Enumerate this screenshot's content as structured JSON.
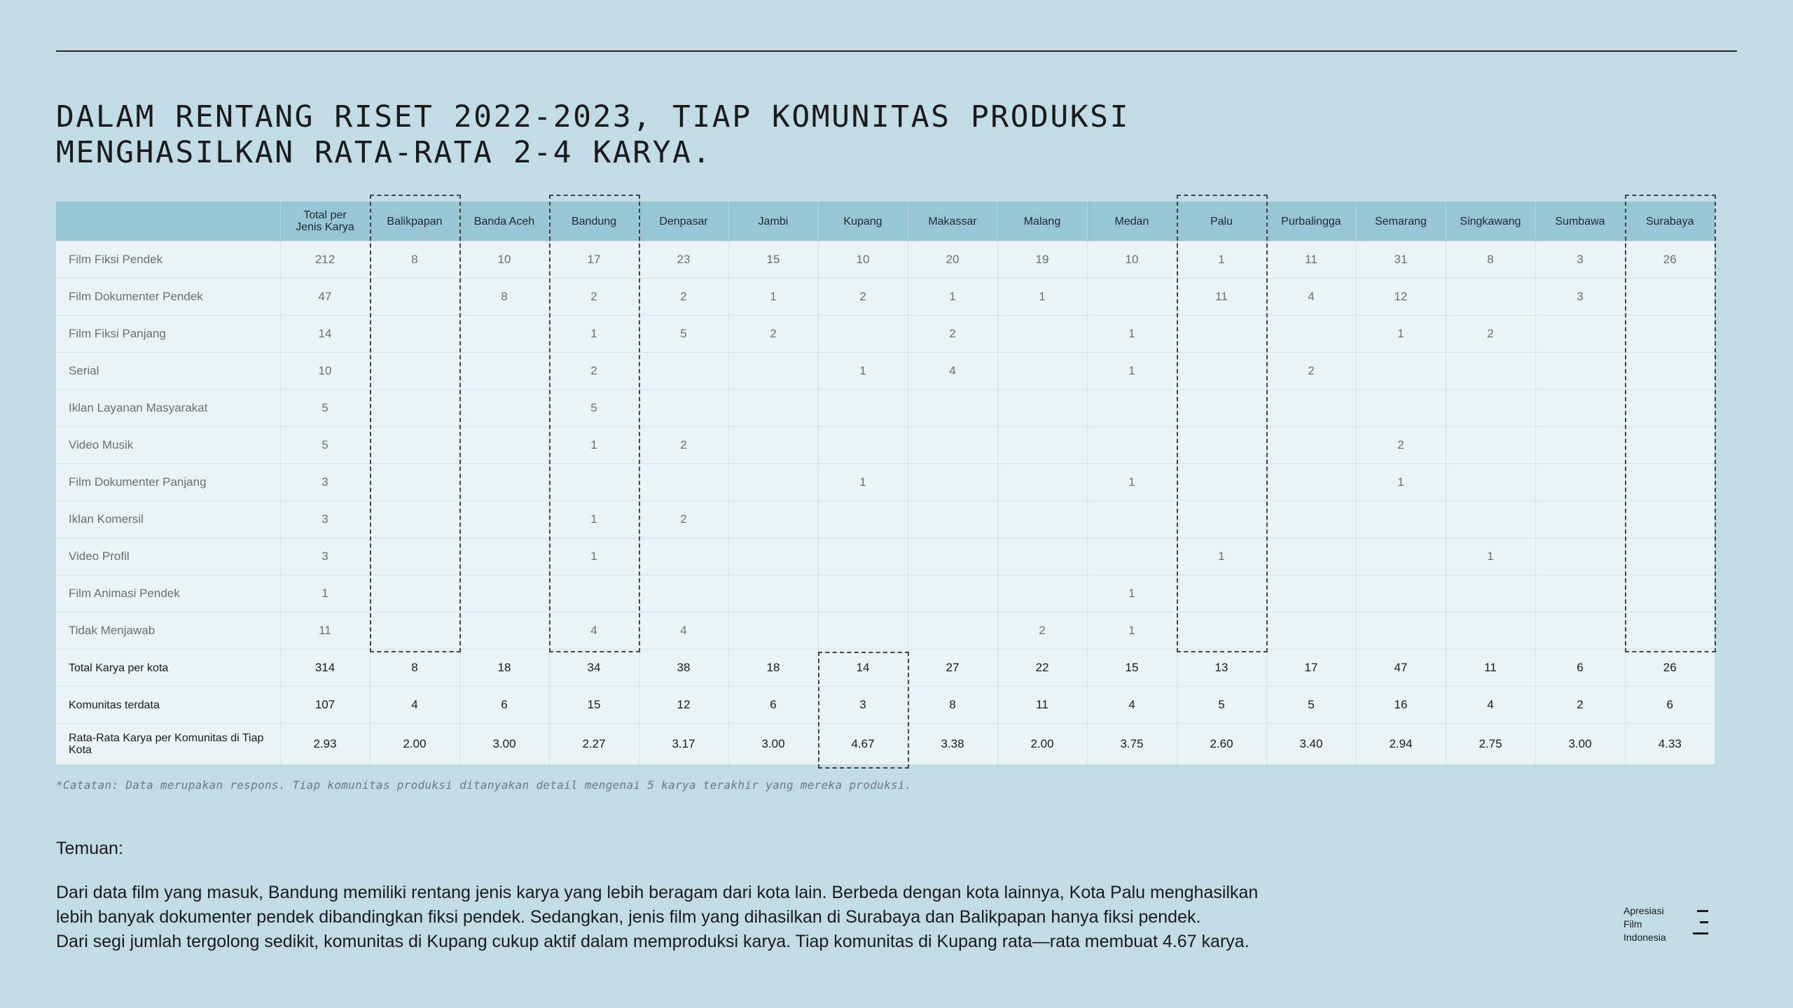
{
  "title_lines": [
    "DALAM RENTANG RISET 2022-2023, TIAP KOMUNITAS PRODUKSI",
    "MENGHASILKAN RATA-RATA 2-4 KARYA."
  ],
  "table": {
    "header_corner": "",
    "header_total_line1": "Total per",
    "header_total_line2": "Jenis Karya",
    "cities": [
      "Balikpapan",
      "Banda Aceh",
      "Bandung",
      "Denpasar",
      "Jambi",
      "Kupang",
      "Makassar",
      "Malang",
      "Medan",
      "Palu",
      "Purbalingga",
      "Semarang",
      "Singkawang",
      "Sumbawa",
      "Surabaya"
    ],
    "rows": [
      {
        "label": "Film Fiksi Pendek",
        "total": "212",
        "values": [
          "8",
          "10",
          "17",
          "23",
          "15",
          "10",
          "20",
          "19",
          "10",
          "1",
          "11",
          "31",
          "8",
          "3",
          "26"
        ]
      },
      {
        "label": "Film Dokumenter Pendek",
        "total": "47",
        "values": [
          "",
          "8",
          "2",
          "2",
          "1",
          "2",
          "1",
          "1",
          "",
          "11",
          "4",
          "12",
          "",
          "3",
          ""
        ]
      },
      {
        "label": "Film Fiksi Panjang",
        "total": "14",
        "values": [
          "",
          "",
          "1",
          "5",
          "2",
          "",
          "2",
          "",
          "1",
          "",
          "",
          "1",
          "2",
          "",
          ""
        ]
      },
      {
        "label": "Serial",
        "total": "10",
        "values": [
          "",
          "",
          "2",
          "",
          "",
          "1",
          "4",
          "",
          "1",
          "",
          "2",
          "",
          "",
          "",
          ""
        ]
      },
      {
        "label": "Iklan Layanan Masyarakat",
        "total": "5",
        "values": [
          "",
          "",
          "5",
          "",
          "",
          "",
          "",
          "",
          "",
          "",
          "",
          "",
          "",
          "",
          ""
        ]
      },
      {
        "label": "Video Musik",
        "total": "5",
        "values": [
          "",
          "",
          "1",
          "2",
          "",
          "",
          "",
          "",
          "",
          "",
          "",
          "2",
          "",
          "",
          ""
        ]
      },
      {
        "label": "Film Dokumenter Panjang",
        "total": "3",
        "values": [
          "",
          "",
          "",
          "",
          "",
          "1",
          "",
          "",
          "1",
          "",
          "",
          "1",
          "",
          "",
          ""
        ]
      },
      {
        "label": "Iklan Komersil",
        "total": "3",
        "values": [
          "",
          "",
          "1",
          "2",
          "",
          "",
          "",
          "",
          "",
          "",
          "",
          "",
          "",
          "",
          ""
        ]
      },
      {
        "label": "Video Profil",
        "total": "3",
        "values": [
          "",
          "",
          "1",
          "",
          "",
          "",
          "",
          "",
          "",
          "1",
          "",
          "",
          "1",
          "",
          ""
        ]
      },
      {
        "label": "Film Animasi Pendek",
        "total": "1",
        "values": [
          "",
          "",
          "",
          "",
          "",
          "",
          "",
          "",
          "1",
          "",
          "",
          "",
          "",
          "",
          ""
        ]
      },
      {
        "label": "Tidak Menjawab",
        "total": "11",
        "values": [
          "",
          "",
          "4",
          "4",
          "",
          "",
          "",
          "2",
          "1",
          "",
          "",
          "",
          "",
          "",
          ""
        ]
      }
    ],
    "summary_rows": [
      {
        "label": "Total Karya per kota",
        "total": "314",
        "values": [
          "8",
          "18",
          "34",
          "38",
          "18",
          "14",
          "27",
          "22",
          "15",
          "13",
          "17",
          "47",
          "11",
          "6",
          "26"
        ]
      },
      {
        "label": "Komunitas terdata",
        "total": "107",
        "values": [
          "4",
          "6",
          "15",
          "12",
          "6",
          "3",
          "8",
          "11",
          "4",
          "5",
          "5",
          "16",
          "4",
          "2",
          "6"
        ]
      },
      {
        "label": "Rata-Rata Karya per Komunitas di Tiap Kota",
        "total": "2.93",
        "values": [
          "2.00",
          "3.00",
          "2.27",
          "3.17",
          "3.00",
          "4.67",
          "3.38",
          "2.00",
          "3.75",
          "2.60",
          "3.40",
          "2.94",
          "2.75",
          "3.00",
          "4.33"
        ]
      }
    ]
  },
  "note": "*Catatan: Data merupakan respons. Tiap komunitas produksi ditanyakan detail mengenai 5 karya terakhir yang mereka produksi.",
  "findings_heading": "Temuan:",
  "findings_lines": [
    "Dari data film yang masuk, Bandung memiliki rentang jenis karya yang lebih beragam dari kota lain. Berbeda dengan kota lainnya, Kota Palu menghasilkan",
    "lebih banyak dokumenter pendek dibandingkan fiksi pendek. Sedangkan, jenis film yang dihasilkan di Surabaya dan Balikpapan hanya fiksi pendek.",
    "Dari segi jumlah tergolong sedikit, komunitas di Kupang cukup aktif dalam memproduksi karya. Tiap komunitas di Kupang rata—rata membuat 4.67 karya."
  ],
  "brand": {
    "lines": [
      "Apresiasi",
      "Film",
      "Indonesia"
    ],
    "icon": "three-bars-icon"
  },
  "highlight_color": "#3a4650"
}
